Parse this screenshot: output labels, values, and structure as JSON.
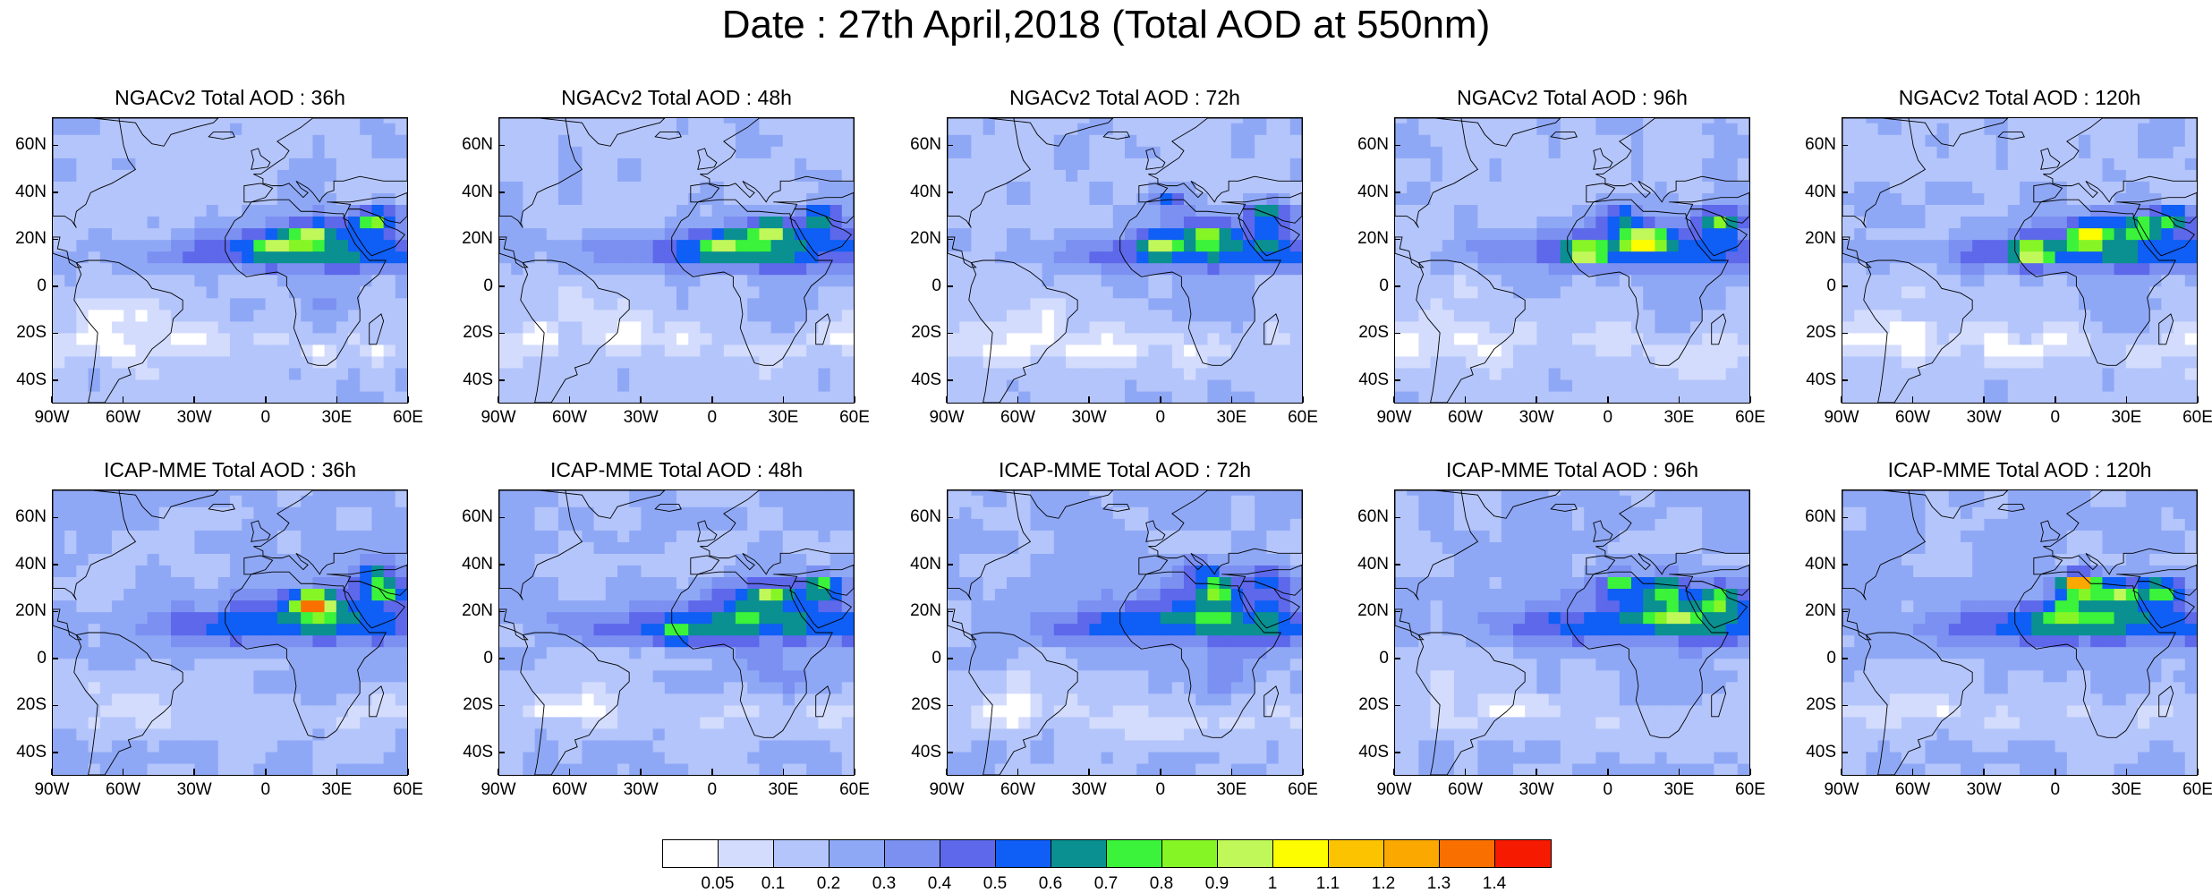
{
  "title": "Date : 27th April,2018 (Total AOD at 550nm)",
  "lat_labels": [
    "60N",
    "40N",
    "20N",
    "0",
    "20S",
    "40S"
  ],
  "lon_labels": [
    "90W",
    "60W",
    "30W",
    "0",
    "30E",
    "60E"
  ],
  "panels": [
    {
      "title": "NGACv2 Total AOD : 36h",
      "model": "NGACv2",
      "lead": "36h",
      "peaks": [
        {
          "lon": 20,
          "lat": 22,
          "v": 0.85
        },
        {
          "lon": 5,
          "lat": 18,
          "v": 0.75
        },
        {
          "lon": 45,
          "lat": 28,
          "v": 0.7
        }
      ]
    },
    {
      "title": "NGACv2 Total AOD : 48h",
      "model": "NGACv2",
      "lead": "48h",
      "peaks": [
        {
          "lon": 25,
          "lat": 24,
          "v": 0.85
        },
        {
          "lon": 5,
          "lat": 18,
          "v": 0.75
        },
        {
          "lon": 45,
          "lat": 30,
          "v": 0.7
        }
      ]
    },
    {
      "title": "NGACv2 Total AOD : 72h",
      "model": "NGACv2",
      "lead": "72h",
      "peaks": [
        {
          "lon": 0,
          "lat": 18,
          "v": 0.85
        },
        {
          "lon": 20,
          "lat": 22,
          "v": 0.8
        },
        {
          "lon": 3,
          "lat": 38,
          "v": 0.7
        },
        {
          "lon": 45,
          "lat": 32,
          "v": 0.7
        }
      ]
    },
    {
      "title": "NGACv2 Total AOD : 96h",
      "model": "NGACv2",
      "lead": "96h",
      "peaks": [
        {
          "lon": -10,
          "lat": 14,
          "v": 0.9
        },
        {
          "lon": 15,
          "lat": 20,
          "v": 0.85
        },
        {
          "lon": 5,
          "lat": 30,
          "v": 0.7
        },
        {
          "lon": 48,
          "lat": 28,
          "v": 0.7
        }
      ]
    },
    {
      "title": "NGACv2 Total AOD : 120h",
      "model": "NGACv2",
      "lead": "120h",
      "peaks": [
        {
          "lon": -10,
          "lat": 14,
          "v": 0.9
        },
        {
          "lon": 15,
          "lat": 22,
          "v": 0.85
        },
        {
          "lon": 35,
          "lat": 25,
          "v": 0.75
        },
        {
          "lon": 50,
          "lat": 30,
          "v": 0.7
        }
      ]
    },
    {
      "title": "ICAP-MME Total AOD : 36h",
      "model": "ICAP-MME",
      "lead": "36h",
      "peaks": [
        {
          "lon": 20,
          "lat": 24,
          "v": 1.3
        },
        {
          "lon": 50,
          "lat": 30,
          "v": 0.8
        },
        {
          "lon": 45,
          "lat": 38,
          "v": 0.7
        }
      ]
    },
    {
      "title": "ICAP-MME Total AOD : 48h",
      "model": "ICAP-MME",
      "lead": "48h",
      "peaks": [
        {
          "lon": 25,
          "lat": 28,
          "v": 0.9
        },
        {
          "lon": 45,
          "lat": 32,
          "v": 0.7
        },
        {
          "lon": -15,
          "lat": 10,
          "v": 0.6
        }
      ]
    },
    {
      "title": "ICAP-MME Total AOD : 72h",
      "model": "ICAP-MME",
      "lead": "72h",
      "peaks": [
        {
          "lon": 25,
          "lat": 30,
          "v": 0.9
        },
        {
          "lon": 20,
          "lat": 38,
          "v": 0.7
        },
        {
          "lon": 45,
          "lat": 35,
          "v": 0.6
        }
      ]
    },
    {
      "title": "ICAP-MME Total AOD : 96h",
      "model": "ICAP-MME",
      "lead": "96h",
      "peaks": [
        {
          "lon": 25,
          "lat": 30,
          "v": 0.9
        },
        {
          "lon": 5,
          "lat": 32,
          "v": 0.8
        },
        {
          "lon": 48,
          "lat": 25,
          "v": 0.7
        },
        {
          "lon": 30,
          "lat": 18,
          "v": 0.7
        }
      ]
    },
    {
      "title": "ICAP-MME Total AOD : 120h",
      "model": "ICAP-MME",
      "lead": "120h",
      "peaks": [
        {
          "lon": 10,
          "lat": 32,
          "v": 1.4
        },
        {
          "lon": 28,
          "lat": 28,
          "v": 0.8
        },
        {
          "lon": 45,
          "lat": 30,
          "v": 0.75
        },
        {
          "lon": 5,
          "lat": 20,
          "v": 0.6
        }
      ]
    }
  ],
  "colorbar": {
    "labels": [
      "0.05",
      "0.1",
      "0.2",
      "0.3",
      "0.4",
      "0.5",
      "0.6",
      "0.7",
      "0.8",
      "0.9",
      "1",
      "1.1",
      "1.2",
      "1.3",
      "1.4"
    ],
    "colors": [
      "#ffffff",
      "#d3dcfd",
      "#b4c5fb",
      "#8fa8f6",
      "#7b90f1",
      "#5d68ea",
      "#0f5ef5",
      "#0a9090",
      "#3af33a",
      "#86f526",
      "#c0f85a",
      "#fdfd00",
      "#fcc300",
      "#fba800",
      "#f97000",
      "#f61b00"
    ]
  }
}
